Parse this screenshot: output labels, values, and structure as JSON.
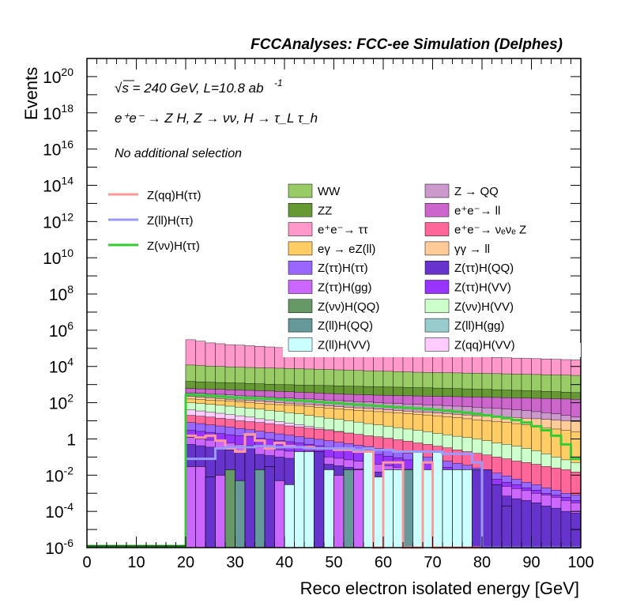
{
  "header": {
    "title": "FCCAnalyses: FCC-ee Simulation (Delphes)"
  },
  "annotations": {
    "energy_line": "√s = 240 GeV, L=10.8 ab",
    "energy_sup": "-1",
    "process_line": "e⁺e⁻ → Z H, Z → νν, H → τ_L τ_h",
    "selection_line": "No additional selection"
  },
  "chart_data": {
    "type": "histogram",
    "title": "FCCAnalyses: FCC-ee Simulation (Delphes)",
    "xlabel": "Reco electron isolated energy [GeV]",
    "ylabel": "Events",
    "xlim": [
      0,
      100
    ],
    "ylim": [
      1e-06,
      1e+21
    ],
    "yscale": "log",
    "xticks": [
      "0",
      "10",
      "20",
      "30",
      "40",
      "50",
      "60",
      "70",
      "80",
      "90",
      "100"
    ],
    "yticks": [
      {
        "base": "10",
        "exp": "-6",
        "value": 1e-06
      },
      {
        "base": "10",
        "exp": "-4",
        "value": 0.0001
      },
      {
        "base": "10",
        "exp": "-2",
        "value": 0.01
      },
      {
        "base": "1",
        "exp": "",
        "value": 1
      },
      {
        "base": "10",
        "exp": "2",
        "value": 100.0
      },
      {
        "base": "10",
        "exp": "4",
        "value": 10000.0
      },
      {
        "base": "10",
        "exp": "6",
        "value": 1000000.0
      },
      {
        "base": "10",
        "exp": "8",
        "value": 100000000.0
      },
      {
        "base": "10",
        "exp": "10",
        "value": 10000000000.0
      },
      {
        "base": "10",
        "exp": "12",
        "value": 1000000000000.0
      },
      {
        "base": "10",
        "exp": "14",
        "value": 100000000000000.0
      },
      {
        "base": "10",
        "exp": "16",
        "value": 1e+16
      },
      {
        "base": "10",
        "exp": "18",
        "value": 1e+18
      },
      {
        "base": "10",
        "exp": "20",
        "value": 1e+20
      }
    ],
    "stack_legend": [
      {
        "name": "WW",
        "color": "#99cc66"
      },
      {
        "name": "Z → QQ",
        "color": "#cc99cc"
      },
      {
        "name": "ZZ",
        "color": "#669933"
      },
      {
        "name": "e⁺e⁻→ ll",
        "color": "#cc66cc"
      },
      {
        "name": "e⁺e⁻→ ττ",
        "color": "#ff99cc"
      },
      {
        "name": "e⁺e⁻→ νₑνₑ Z",
        "color": "#ff6699"
      },
      {
        "name": "eγ → eZ(ll)",
        "color": "#ffcc66"
      },
      {
        "name": "γγ → ll",
        "color": "#ffcc99"
      },
      {
        "name": "Z(ττ)H(ττ)",
        "color": "#9966ff"
      },
      {
        "name": "Z(ττ)H(QQ)",
        "color": "#6633cc"
      },
      {
        "name": "Z(ττ)H(gg)",
        "color": "#cc66ff"
      },
      {
        "name": "Z(ττ)H(VV)",
        "color": "#9933ff"
      },
      {
        "name": "Z(νν)H(QQ)",
        "color": "#669966"
      },
      {
        "name": "Z(νν)H(VV)",
        "color": "#ccffcc"
      },
      {
        "name": "Z(ll)H(QQ)",
        "color": "#669999"
      },
      {
        "name": "Z(ll)H(gg)",
        "color": "#99cccc"
      },
      {
        "name": "Z(ll)H(VV)",
        "color": "#ccffff"
      },
      {
        "name": "Z(qq)H(VV)",
        "color": "#ffccff"
      }
    ],
    "line_legend": [
      {
        "name": "Z(qq)H(ττ)",
        "color": "#ff9999"
      },
      {
        "name": "Z(ll)H(ττ)",
        "color": "#9999ff"
      },
      {
        "name": "Z(νν)H(ττ)",
        "color": "#33cc33"
      }
    ],
    "bin_edges": [
      20,
      22,
      24,
      26,
      28,
      30,
      32,
      34,
      36,
      38,
      40,
      42,
      44,
      46,
      48,
      50,
      52,
      54,
      56,
      58,
      60,
      62,
      64,
      66,
      68,
      70,
      72,
      74,
      76,
      78,
      80,
      82,
      84,
      86,
      88,
      90,
      92,
      94,
      96,
      98,
      100
    ],
    "stack_bands": [
      {
        "name": "e⁺e⁻→ ττ",
        "color": "#ff99cc",
        "top": [
          300000.0,
          250000.0,
          200000.0,
          180000.0,
          160000.0,
          150000.0,
          140000.0,
          130000.0,
          120000.0,
          110000.0,
          100000.0,
          95000.0,
          90000.0,
          85000.0,
          80000.0,
          75000.0,
          70000.0,
          65000.0,
          60000.0,
          58000.0,
          55000.0,
          52000.0,
          50000.0,
          48000.0,
          45000.0,
          43000.0,
          41000.0,
          39000.0,
          37000.0,
          35000.0,
          33000.0,
          31000.0,
          30000.0,
          29000.0,
          28000.0,
          27000.0,
          26000.0,
          25000.0,
          24000.0,
          23000.0
        ]
      },
      {
        "name": "WW",
        "color": "#99cc66",
        "top": [
          12000.0,
          11000.0,
          10500.0,
          10000.0,
          9500.0,
          9000.0,
          8800.0,
          8500.0,
          8200.0,
          8000.0,
          7800.0,
          7500.0,
          7200.0,
          7000.0,
          6800.0,
          6500.0,
          6300.0,
          6000.0,
          5800.0,
          5600.0,
          5400.0,
          5200.0,
          5000.0,
          4800.0,
          4700.0,
          4600.0,
          4500.0,
          4400.0,
          4300.0,
          4200.0,
          4100.0,
          4000.0,
          3900.0,
          3800.0,
          3700.0,
          3600.0,
          3500.0,
          3400.0,
          3300.0,
          3200.0
        ]
      },
      {
        "name": "ZZ",
        "color": "#669933",
        "top": [
          1500.0,
          1400.0,
          1350.0,
          1300.0,
          1250.0,
          1200.0,
          1150.0,
          1100.0,
          1050.0,
          1000.0,
          980,
          950,
          920,
          900,
          880,
          850,
          820,
          800,
          780,
          760,
          740,
          720,
          700,
          680,
          660,
          640,
          620,
          600,
          580,
          560,
          540,
          520,
          500,
          480,
          460,
          440,
          420,
          400,
          380,
          360
        ]
      },
      {
        "name": "e⁺e⁻→ ll",
        "color": "#cc66cc",
        "top": [
          600,
          580,
          560,
          540,
          520,
          500,
          480,
          460,
          440,
          420,
          400,
          380,
          360,
          340,
          320,
          300,
          290,
          280,
          270,
          260,
          250,
          245,
          240,
          235,
          230,
          225,
          220,
          215,
          210,
          205,
          200,
          195,
          190,
          185,
          180,
          175,
          170,
          165,
          160,
          155
        ]
      },
      {
        "name": "Z → QQ",
        "color": "#cc99cc",
        "top": [
          350,
          330,
          310,
          290,
          270,
          250,
          235,
          220,
          205,
          190,
          180,
          170,
          160,
          150,
          140,
          130,
          122,
          115,
          108,
          100,
          95,
          90,
          85,
          80,
          76,
          72,
          68,
          64,
          60,
          56,
          52,
          48,
          44,
          40,
          36,
          32,
          28,
          24,
          20,
          16
        ]
      },
      {
        "name": "γγ → ll",
        "color": "#ffcc99",
        "top": [
          220,
          200,
          185,
          170,
          155,
          140,
          130,
          120,
          110,
          100,
          92,
          85,
          78,
          72,
          66,
          60,
          56,
          52,
          48,
          44,
          40,
          37,
          34,
          31,
          29,
          27,
          25,
          23,
          21,
          19,
          18,
          17,
          16,
          15,
          14,
          13,
          12,
          11,
          10,
          9
        ]
      },
      {
        "name": "eγ → eZ(ll)",
        "color": "#ffcc66",
        "top": [
          160,
          150,
          140,
          130,
          120,
          110,
          100,
          92,
          85,
          78,
          72,
          66,
          60,
          55,
          50,
          46,
          42,
          38,
          35,
          32,
          29,
          27,
          25,
          23,
          21,
          19,
          17,
          15,
          13,
          11,
          10,
          9,
          8,
          7,
          6,
          5,
          4,
          3.5,
          3,
          2.5
        ]
      },
      {
        "name": "Z(νν)H(VV)",
        "color": "#ccffcc",
        "top": [
          100,
          90,
          80,
          72,
          64,
          57,
          50,
          44,
          38,
          33,
          28,
          24,
          20,
          17,
          14,
          12,
          10,
          8.5,
          7,
          6,
          5,
          4.2,
          3.5,
          3,
          2.5,
          2,
          1.7,
          1.4,
          1.2,
          1,
          0.8,
          0.6,
          0.5,
          0.4,
          0.3,
          0.22,
          0.15,
          0.1,
          0.07,
          0.05
        ]
      },
      {
        "name": "Z(qq)H(VV)",
        "color": "#ffccff",
        "top": [
          40,
          35,
          30,
          26,
          22,
          19,
          16,
          13,
          11,
          9,
          7.5,
          6.2,
          5,
          4,
          3.2,
          2.6,
          2.1,
          1.7,
          1.4,
          1.1,
          0.9,
          0.7,
          0.55,
          0.45,
          0.35,
          0.28,
          0.22,
          0.17,
          0.13,
          0.1,
          0.08,
          0.06,
          0.045,
          0.035,
          0.025,
          0.018,
          0.013,
          0.009,
          0.006,
          0.004
        ]
      },
      {
        "name": "e⁺e⁻→ νₑνₑ Z",
        "color": "#ff6699",
        "top": [
          20,
          18,
          16,
          14,
          12,
          10,
          9,
          8,
          7,
          6,
          5.2,
          4.5,
          3.9,
          3.4,
          2.9,
          2.5,
          2.1,
          1.8,
          1.5,
          1.3,
          1.1,
          0.9,
          0.75,
          0.6,
          0.5,
          0.4,
          0.32,
          0.25,
          0.2,
          0.16,
          0.13,
          0.1,
          0.08,
          0.06,
          0.05,
          0.04,
          0.03,
          0.025,
          0.02,
          0.015
        ]
      },
      {
        "name": "Z(ττ)H(ττ)",
        "color": "#9966ff",
        "top": [
          8,
          7,
          6,
          5.2,
          4.5,
          3.8,
          3.2,
          2.7,
          2.3,
          1.9,
          1.6,
          1.35,
          1.1,
          0.95,
          0.8,
          0.65,
          0.55,
          0.45,
          0.38,
          0.3,
          0.25,
          0.2,
          0.16,
          0.13,
          0.1,
          0.08,
          0.06,
          0.045,
          0.035,
          0.025,
          0.018,
          0.013,
          0.009,
          0.006,
          0.004,
          0.003,
          0.002,
          0.0015,
          0.001,
          0.0008
        ]
      },
      {
        "name": "Z(ττ)H(VV)",
        "color": "#9933ff",
        "top": [
          3,
          2.6,
          2.3,
          2,
          1.7,
          1.5,
          1.3,
          1.1,
          0.95,
          0.8,
          0.7,
          0.6,
          0.5,
          0.42,
          0.35,
          0.3,
          0.25,
          0.2,
          0.17,
          0.14,
          0.11,
          0.09,
          0.07,
          0.055,
          0.045,
          0.035,
          0.027,
          0.02,
          0.015,
          0.011,
          0.008,
          0.006,
          0.004,
          0.003,
          0.002,
          0.0015,
          0.001,
          0.0008,
          0.0006,
          0.0004
        ]
      },
      {
        "name": "Z(ττ)H(gg)",
        "color": "#cc66ff",
        "top": [
          1.2,
          1,
          0.85,
          0.72,
          0.6,
          0.5,
          0.42,
          0.35,
          0.3,
          0.25,
          0.21,
          0.18,
          0.15,
          0.12,
          0.1,
          0.085,
          0.07,
          0.058,
          0.048,
          0.04,
          0.033,
          0.027,
          0.022,
          0.018,
          0.015,
          0.012,
          0.01,
          0.008,
          0.0065,
          0.005,
          0.004,
          0.003,
          0.0024,
          0.0018,
          0.0014,
          0.001,
          0.0008,
          0.0006,
          0.0004,
          0.0003
        ]
      },
      {
        "name": "Z(ττ)H(QQ)",
        "color": "#6633cc",
        "top": [
          0.5,
          0.42,
          0.35,
          0.3,
          0.25,
          0.2,
          0.17,
          0.14,
          0.12,
          0.1,
          0.085,
          0.07,
          0.058,
          0.048,
          0.04,
          0.033,
          0.027,
          0.022,
          0.018,
          0.015,
          0.012,
          0.01,
          0.008,
          0.0065,
          0.005,
          0.004,
          0.0032,
          0.0025,
          0.002,
          0.0015,
          0.0012,
          0.0009,
          0.0007,
          0.0005,
          0.0004,
          0.0003,
          0.0002,
          0.00015,
          0.0001,
          8e-05
        ]
      }
    ],
    "bottom_bins": [
      {
        "x0": 20,
        "x1": 22,
        "value": 0.03,
        "color": "#cc66ff"
      },
      {
        "x0": 22,
        "x1": 24,
        "value": 0.03,
        "color": "#cc66ff"
      },
      {
        "x0": 24,
        "x1": 26,
        "value": 0.008,
        "color": "#6633cc"
      },
      {
        "x0": 26,
        "x1": 28,
        "value": 0.01,
        "color": "#cc66ff"
      },
      {
        "x0": 28,
        "x1": 30,
        "value": 0.02,
        "color": "#669966"
      },
      {
        "x0": 30,
        "x1": 32,
        "value": 0.005,
        "color": "#669999"
      },
      {
        "x0": 32,
        "x1": 34,
        "value": 0.4,
        "color": "#6633cc"
      },
      {
        "x0": 34,
        "x1": 36,
        "value": 0.02,
        "color": "#669999"
      },
      {
        "x0": 36,
        "x1": 38,
        "value": 0.03,
        "color": "#6633cc"
      },
      {
        "x0": 38,
        "x1": 40,
        "value": 0.005,
        "color": "#cc66ff"
      },
      {
        "x0": 40,
        "x1": 42,
        "value": 0.003,
        "color": "#ccffff"
      },
      {
        "x0": 42,
        "x1": 44,
        "value": 0.2,
        "color": "#ccffff"
      },
      {
        "x0": 44,
        "x1": 46,
        "value": 0.2,
        "color": "#ccffff"
      },
      {
        "x0": 46,
        "x1": 48,
        "value": 0.2,
        "color": "#6633cc"
      },
      {
        "x0": 48,
        "x1": 50,
        "value": 0.02,
        "color": "#ccffff"
      },
      {
        "x0": 50,
        "x1": 52,
        "value": 0.01,
        "color": "#cc66ff"
      },
      {
        "x0": 52,
        "x1": 54,
        "value": 0.02,
        "color": "#669999"
      },
      {
        "x0": 54,
        "x1": 56,
        "value": 0.02,
        "color": "#cc66ff"
      },
      {
        "x0": 56,
        "x1": 58,
        "value": 0.2,
        "color": "#ccffff"
      },
      {
        "x0": 58,
        "x1": 60,
        "value": 0.008,
        "color": "#ccffff"
      },
      {
        "x0": 60,
        "x1": 62,
        "value": 0.02,
        "color": "#ccffff"
      },
      {
        "x0": 62,
        "x1": 64,
        "value": 0.02,
        "color": "#ccffff"
      },
      {
        "x0": 64,
        "x1": 66,
        "value": 0.02,
        "color": "#669999"
      },
      {
        "x0": 66,
        "x1": 68,
        "value": 0.2,
        "color": "#ccffff"
      },
      {
        "x0": 68,
        "x1": 70,
        "value": 0.02,
        "color": "#ccffff"
      },
      {
        "x0": 70,
        "x1": 72,
        "value": 0.2,
        "color": "#ccffff"
      },
      {
        "x0": 72,
        "x1": 74,
        "value": 0.02,
        "color": "#ccffff"
      },
      {
        "x0": 74,
        "x1": 76,
        "value": 0.02,
        "color": "#ccffff"
      },
      {
        "x0": 76,
        "x1": 78,
        "value": 0.02,
        "color": "#ccffff"
      },
      {
        "x0": 78,
        "x1": 80,
        "value": 0.02,
        "color": "#6633cc"
      },
      {
        "x0": 80,
        "x1": 82,
        "value": 0.02,
        "color": "#6633cc"
      },
      {
        "x0": 82,
        "x1": 84,
        "value": 0.003,
        "color": "#6633cc"
      },
      {
        "x0": 84,
        "x1": 86,
        "value": 0.0002,
        "color": "#6633cc"
      }
    ],
    "lines": [
      {
        "name": "Z(νν)H(ττ)",
        "color": "#33cc33",
        "bin_values": [
          280,
          260,
          240,
          220,
          200,
          190,
          180,
          170,
          160,
          150,
          140,
          130,
          120,
          110,
          100,
          92,
          85,
          78,
          72,
          66,
          60,
          56,
          52,
          48,
          44,
          40,
          36,
          32,
          28,
          24,
          20,
          17,
          14,
          11,
          8,
          5,
          3,
          1.5,
          0.5,
          0.08
        ]
      },
      {
        "name": "Z(qq)H(ττ)",
        "color": "#ff9999",
        "bin_values": [
          1.5,
          1.2,
          1.5,
          0.8,
          0.3,
          0.2,
          1.8,
          0.8,
          0.3,
          0.6,
          0.4,
          0.35,
          0.35,
          0.3,
          0.3,
          0.25,
          0.25,
          0.2,
          0.2,
          1e-06,
          0.05,
          0.05,
          1e-06,
          1e-06,
          0.05,
          1e-06,
          1e-06,
          1e-06,
          1e-06,
          1e-06,
          1e-06,
          1e-06,
          1e-06,
          1e-06,
          1e-06,
          1e-06,
          1e-06,
          1e-06,
          1e-06,
          1e-06
        ]
      },
      {
        "name": "Z(ll)H(ττ)",
        "color": "#9999ff",
        "bin_values": [
          0.08,
          0.08,
          0.08,
          0.3,
          0.35,
          0.35,
          0.35,
          0.4,
          0.4,
          0.35,
          0.35,
          0.35,
          0.3,
          0.3,
          0.3,
          0.3,
          0.3,
          0.25,
          0.3,
          0.25,
          0.25,
          0.2,
          0.2,
          0.2,
          0.2,
          0.2,
          0.15,
          0.15,
          0.15,
          0.05,
          1e-06,
          1e-06,
          1e-06,
          1e-06,
          1e-06,
          1e-06,
          1e-06,
          1e-06,
          1e-06,
          1e-06
        ]
      }
    ]
  }
}
